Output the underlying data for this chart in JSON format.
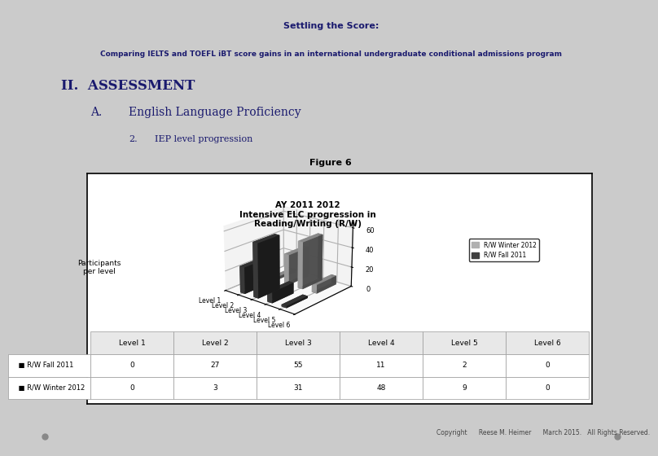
{
  "page_title_line1": "Settling the Score:",
  "page_title_line2": "Comparing IELTS and TOEFL iBT score gains in an international undergraduate conditional admissions program",
  "section_heading": "II.  ASSESSMENT",
  "sub_heading_a": "A.",
  "sub_heading_text": "English Language Proficiency",
  "sub_heading_2": "2.",
  "sub_heading_2_text": "IEP level progression",
  "figure_label": "Figure 6",
  "chart_title": "AY 2011 2012\nIntensive ELC progression in\nReading/Writing (R/W)",
  "ylabel": "Participants\nper level",
  "categories": [
    "Level 1",
    "Level 2",
    "Level 3",
    "Level 4",
    "Level 5",
    "Level 6"
  ],
  "series1_label": "R/W Fall 2011",
  "series1_values": [
    0,
    27,
    55,
    11,
    2,
    0
  ],
  "series1_color": "#404040",
  "series2_label": "R/W Winter 2012",
  "series2_values": [
    0,
    3,
    31,
    48,
    9,
    0
  ],
  "series2_color": "#b0b0b0",
  "yticks": [
    0,
    20,
    40,
    60
  ],
  "page_bg": "#cbcbcb",
  "header_bg": "#d2d2d2",
  "copyright_text": "Copyright      Reese M. Heimer      March 2015.   All Rights Reserved.",
  "table_data": [
    [
      "",
      "Level 1",
      "Level 2",
      "Level 3",
      "Level 4",
      "Level 5",
      "Level 6"
    ],
    [
      "R/W Fall 2011",
      "0",
      "27",
      "55",
      "11",
      "2",
      "0"
    ],
    [
      "R/W Winter 2012",
      "0",
      "3",
      "31",
      "48",
      "9",
      "0"
    ]
  ]
}
